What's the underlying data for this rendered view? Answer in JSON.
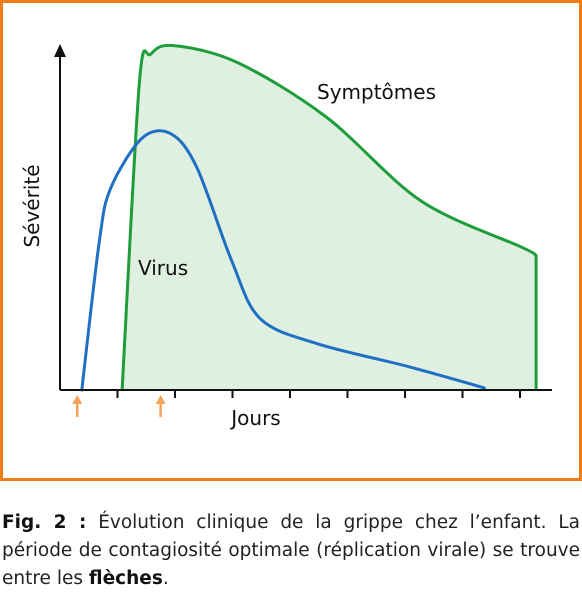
{
  "chart_data": {
    "type": "area",
    "ylabel": "Sévérité",
    "xlabel": "Jours",
    "x_ticks": [
      1,
      2,
      3,
      4,
      5,
      6,
      7,
      8
    ],
    "xlim": [
      0,
      9
    ],
    "ylim": [
      0,
      100
    ],
    "series": [
      {
        "name": "Symptômes",
        "style": "filled-area",
        "color": "#1e9e3a",
        "fill": "#dff0e0",
        "points": [
          [
            1.08,
            0
          ],
          [
            1.38,
            73
          ],
          [
            1.58,
            80
          ],
          [
            1.98,
            82
          ],
          [
            3.08,
            78
          ],
          [
            4.63,
            65
          ],
          [
            6.28,
            45
          ],
          [
            8.03,
            34
          ],
          [
            8.28,
            32
          ],
          [
            8.28,
            0
          ]
        ]
      },
      {
        "name": "Virus",
        "style": "line",
        "color": "#1f6fc4",
        "points": [
          [
            0.38,
            0
          ],
          [
            0.68,
            35
          ],
          [
            0.88,
            48
          ],
          [
            1.43,
            60
          ],
          [
            1.93,
            61
          ],
          [
            2.38,
            53
          ],
          [
            2.98,
            31
          ],
          [
            3.48,
            17
          ],
          [
            4.48,
            11
          ],
          [
            6.08,
            5.5
          ],
          [
            7.38,
            0.5
          ]
        ]
      }
    ],
    "arrows": [
      {
        "x": 0.3,
        "color": "#f5a35a"
      },
      {
        "x": 1.75,
        "color": "#f5a35a"
      }
    ],
    "frame_color": "#f07d16",
    "grid": false
  },
  "caption": {
    "figure_label": "Fig. 2 :",
    "text_part1": " Évolution clinique de la grippe chez l’enfant. La période de contagiosité optimale (réplication virale) se trouve entre les ",
    "bold_word": "flèches",
    "text_part2": "."
  }
}
